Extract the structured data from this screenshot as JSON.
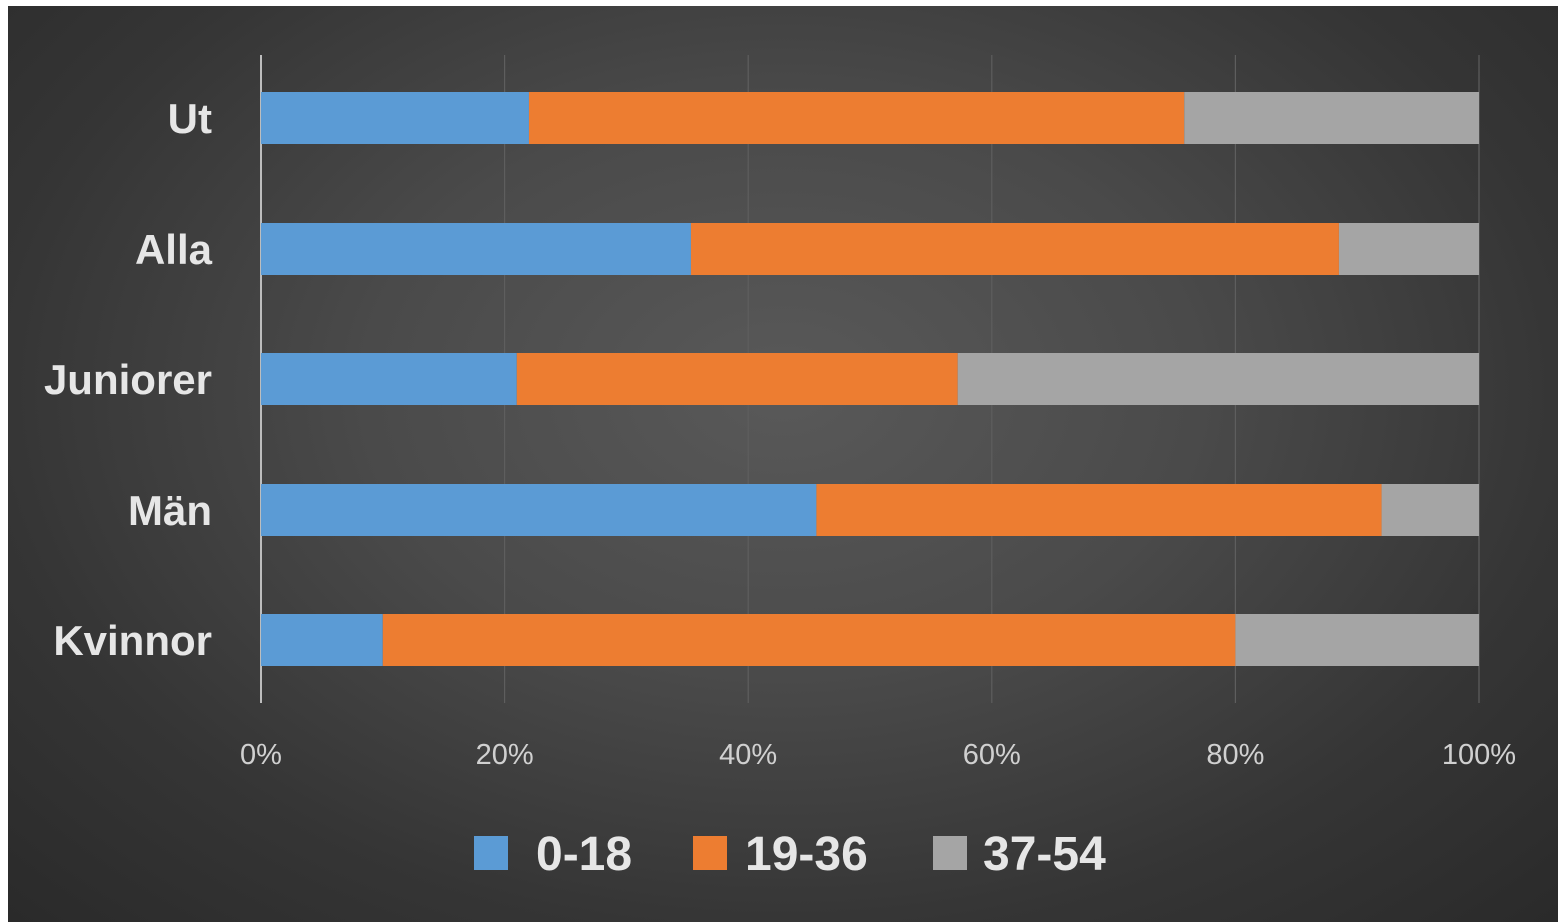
{
  "chart_data": {
    "type": "bar",
    "orientation": "horizontal",
    "stacked": "percent",
    "categories": [
      "Ut",
      "Alla",
      "Juniorer",
      "Män",
      "Kvinnor"
    ],
    "series": [
      {
        "name": "0-18",
        "color": "#5b9bd5",
        "values": [
          22,
          35.3,
          21,
          45.6,
          10
        ]
      },
      {
        "name": "19-36",
        "color": "#ed7d31",
        "values": [
          53.8,
          53.2,
          36.2,
          46.4,
          70
        ]
      },
      {
        "name": "37-54",
        "color": "#a5a5a5",
        "values": [
          24.2,
          11.5,
          42.8,
          8,
          20
        ]
      }
    ],
    "xlim": [
      0,
      100
    ],
    "x_ticks": [
      "0%",
      "20%",
      "40%",
      "60%",
      "80%",
      "100%"
    ],
    "grid": "vertical",
    "legend_position": "bottom",
    "background": "#404040"
  }
}
